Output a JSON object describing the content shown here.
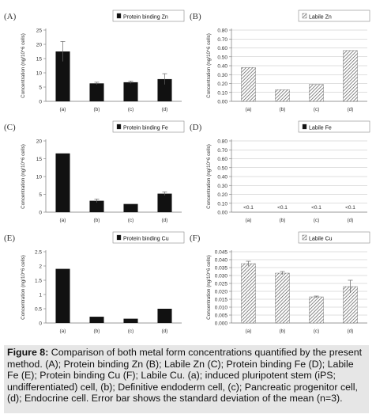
{
  "colors": {
    "bar_solid": "#111111",
    "bar_hatch": "#555555",
    "axis": "#777777",
    "grid": "#bfbfbf",
    "caption_bg": "#e6e6e6"
  },
  "chart_data": [
    {
      "id": "A",
      "type": "bar",
      "panel_label": "(A)",
      "legend": "Protein binding Zn",
      "legend_style": "solid",
      "ylabel": "Concentration (ng/10^6 cells)",
      "categories": [
        "(a)",
        "(b)",
        "(c)",
        "(d)"
      ],
      "values": [
        17.5,
        6.3,
        6.7,
        7.8
      ],
      "errors": [
        3.5,
        0.4,
        0.4,
        1.9
      ],
      "ylim": [
        0,
        25
      ],
      "yticks": [
        "0",
        "5",
        "10",
        "15",
        "20",
        "25"
      ],
      "grid": false,
      "category_labels": [
        "(a)",
        "(b)",
        "(c)",
        "(d)"
      ]
    },
    {
      "id": "B",
      "type": "bar",
      "panel_label": "(B)",
      "legend": "Labile Zn",
      "legend_style": "hatch",
      "ylabel": "Concentration (ng/10^6 cells)",
      "categories": [
        "(a)",
        "(b)",
        "(c)",
        "(d)"
      ],
      "values": [
        0.38,
        0.13,
        0.19,
        0.57
      ],
      "errors": [
        0,
        0,
        0,
        0
      ],
      "ylim": [
        0,
        0.8
      ],
      "yticks": [
        "0.00",
        "0.10",
        "0.20",
        "0.30",
        "0.40",
        "0.50",
        "0.60",
        "0.70",
        "0.80"
      ],
      "grid": true,
      "category_labels": [
        "(a)",
        "(b)",
        "(c)",
        "(d)"
      ]
    },
    {
      "id": "C",
      "type": "bar",
      "panel_label": "(C)",
      "legend": "Protein binding Fe",
      "legend_style": "solid",
      "ylabel": "Concentration (ng/10^6 cells)",
      "categories": [
        "(a)",
        "(b)",
        "(c)",
        "(d)"
      ],
      "values": [
        16.5,
        3.2,
        2.3,
        5.2
      ],
      "errors": [
        0,
        0.5,
        0,
        0.5
      ],
      "ylim": [
        0,
        20
      ],
      "yticks": [
        "0",
        "5",
        "10",
        "15",
        "20"
      ],
      "grid": false,
      "category_labels": [
        "(a)",
        "(b)",
        "(c)",
        "(d)"
      ]
    },
    {
      "id": "D",
      "type": "bar",
      "panel_label": "(D)",
      "legend": "Labile Fe",
      "legend_style": "solid",
      "ylabel": "Concentration (ng/10^6 cells)",
      "categories": [
        "(a)",
        "(b)",
        "(c)",
        "(d)"
      ],
      "values": [
        0,
        0,
        0,
        0
      ],
      "errors": [
        0,
        0,
        0,
        0
      ],
      "value_labels": [
        "<0.1",
        "<0.1",
        "<0.1",
        "<0.1"
      ],
      "ylim": [
        0,
        0.8
      ],
      "yticks": [
        "0.00",
        "0.10",
        "0.20",
        "0.30",
        "0.40",
        "0.50",
        "0.60",
        "0.70",
        "0.80"
      ],
      "grid": true,
      "category_labels": [
        "(a)",
        "(b)",
        "(c)",
        "(d)"
      ]
    },
    {
      "id": "E",
      "type": "bar",
      "panel_label": "(E)",
      "legend": "Protein binding Cu",
      "legend_style": "solid",
      "ylabel": "Concentration (ng/10^6 cells)",
      "categories": [
        "(a)",
        "(b)",
        "(c)",
        "(d)"
      ],
      "values": [
        1.9,
        0.22,
        0.15,
        0.5
      ],
      "errors": [
        0,
        0,
        0,
        0
      ],
      "ylim": [
        0,
        2.5
      ],
      "yticks": [
        "0",
        "0.5",
        "1",
        "1.5",
        "2",
        "2.5"
      ],
      "grid": false,
      "category_labels": [
        "(a)",
        "(b)",
        "(c)",
        "(d)"
      ]
    },
    {
      "id": "F",
      "type": "bar",
      "panel_label": "(F)",
      "legend": "Labile Cu",
      "legend_style": "hatch",
      "ylabel": "Concentration (ng/10^6 cells)",
      "categories": [
        "(a)",
        "(b)",
        "(c)",
        "(d)"
      ],
      "values": [
        0.0375,
        0.0315,
        0.0165,
        0.023
      ],
      "errors": [
        0.0015,
        0.001,
        0.0005,
        0.004
      ],
      "ylim": [
        0,
        0.045
      ],
      "yticks": [
        "0.000",
        "0.005",
        "0.010",
        "0.015",
        "0.020",
        "0.025",
        "0.030",
        "0.035",
        "0.040",
        "0.045"
      ],
      "grid": true,
      "category_labels": [
        "(a)",
        "(b)",
        "(c)",
        "(d)"
      ]
    }
  ],
  "caption": {
    "bold": "Figure 8:",
    "text": " Comparison of both metal form concentrations quantified by the present method. (A); Protein binding Zn (B); Labile Zn (C); Protein binding Fe (D); Labile Fe (E); Protein binding Cu (F); Labile Cu. (a); induced pluripotent stem (iPS; undifferentiated) cell, (b); Definitive endoderm cell, (c); Pancreatic progenitor cell, (d); Endocrine cell. Error bar shows the standard deviation of the mean (n=3)."
  }
}
